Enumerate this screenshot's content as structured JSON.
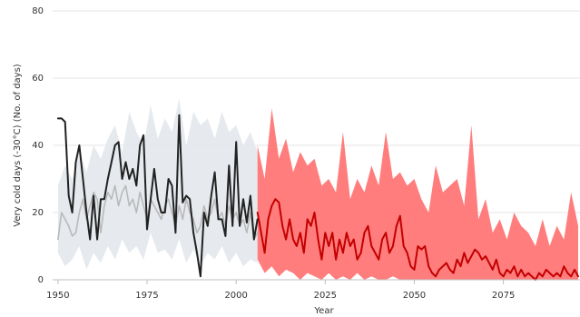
{
  "chart_data": {
    "type": "line",
    "title": "",
    "xlabel": "Year",
    "ylabel": "Very cold days (-30°C) (No. of days)",
    "xlim": [
      1948.5,
      2096.5
    ],
    "ylim": [
      0,
      80
    ],
    "xticks": [
      1950,
      1975,
      2000,
      2025,
      2050,
      2075
    ],
    "yticks": [
      0,
      20,
      40,
      60,
      80
    ],
    "grid": true,
    "legend": "none",
    "colors": {
      "observed": "#222222",
      "model_historical": "#b9b9b9",
      "model_range_historical": "#e3e8ec",
      "projection": "#c40000",
      "projection_range": "#ff6f6f"
    },
    "series": [
      {
        "role": "observed",
        "x": [
          1950,
          1951,
          1952,
          1953,
          1954,
          1955,
          1956,
          1957,
          1958,
          1959,
          1960,
          1961,
          1962,
          1963,
          1964,
          1965,
          1966,
          1967,
          1968,
          1969,
          1970,
          1971,
          1972,
          1973,
          1974,
          1975,
          1976,
          1977,
          1978,
          1979,
          1980,
          1981,
          1982,
          1983,
          1984,
          1985,
          1986,
          1987,
          1988,
          1989,
          1990,
          1991,
          1992,
          1993,
          1994,
          1995,
          1996,
          1997,
          1998,
          1999,
          2000,
          2001,
          2002,
          2003,
          2004,
          2005,
          2006
        ],
        "values": [
          48,
          48,
          47,
          25,
          20,
          35,
          40,
          30,
          20,
          12,
          25,
          12,
          24,
          24,
          30,
          35,
          40,
          41,
          30,
          35,
          30,
          33,
          28,
          40,
          43,
          15,
          24,
          33,
          24,
          20,
          20,
          30,
          28,
          14,
          49,
          23,
          25,
          24,
          14,
          8,
          1,
          20,
          16,
          25,
          32,
          18,
          18,
          13,
          34,
          16,
          41,
          16,
          24,
          17,
          25,
          12,
          18
        ]
      },
      {
        "role": "model_historical",
        "x": [
          1950,
          1951,
          1952,
          1953,
          1954,
          1955,
          1956,
          1957,
          1958,
          1959,
          1960,
          1961,
          1962,
          1963,
          1964,
          1965,
          1966,
          1967,
          1968,
          1969,
          1970,
          1971,
          1972,
          1973,
          1974,
          1975,
          1976,
          1977,
          1978,
          1979,
          1980,
          1981,
          1982,
          1983,
          1984,
          1985,
          1986,
          1987,
          1988,
          1989,
          1990,
          1991,
          1992,
          1993,
          1994,
          1995,
          1996,
          1997,
          1998,
          1999,
          2000,
          2001,
          2002,
          2003,
          2004,
          2005,
          2006
        ],
        "values": [
          12,
          20,
          18,
          16,
          13,
          14,
          20,
          24,
          18,
          22,
          26,
          24,
          14,
          22,
          26,
          24,
          28,
          22,
          26,
          28,
          22,
          24,
          20,
          26,
          22,
          18,
          24,
          22,
          20,
          18,
          22,
          24,
          20,
          16,
          22,
          18,
          24,
          20,
          18,
          14,
          16,
          22,
          18,
          20,
          24,
          18,
          20,
          16,
          22,
          18,
          20,
          16,
          18,
          14,
          20,
          12,
          14
        ]
      },
      {
        "role": "model_range_historical",
        "x": [
          1950,
          1952,
          1954,
          1956,
          1958,
          1960,
          1962,
          1964,
          1966,
          1968,
          1970,
          1972,
          1974,
          1976,
          1978,
          1980,
          1982,
          1984,
          1986,
          1988,
          1990,
          1992,
          1994,
          1996,
          1998,
          2000,
          2002,
          2004,
          2006
        ],
        "upper": [
          28,
          34,
          30,
          38,
          32,
          40,
          36,
          42,
          46,
          38,
          50,
          44,
          40,
          52,
          42,
          48,
          44,
          54,
          40,
          50,
          46,
          48,
          42,
          50,
          44,
          46,
          40,
          44,
          38
        ],
        "lower": [
          8,
          4,
          6,
          10,
          3,
          8,
          5,
          10,
          6,
          12,
          8,
          10,
          6,
          14,
          8,
          9,
          6,
          12,
          5,
          9,
          4,
          8,
          6,
          10,
          5,
          8,
          4,
          6,
          5
        ]
      },
      {
        "role": "projection",
        "x": [
          2006,
          2007,
          2008,
          2009,
          2010,
          2011,
          2012,
          2013,
          2014,
          2015,
          2016,
          2017,
          2018,
          2019,
          2020,
          2021,
          2022,
          2023,
          2024,
          2025,
          2026,
          2027,
          2028,
          2029,
          2030,
          2031,
          2032,
          2033,
          2034,
          2035,
          2036,
          2037,
          2038,
          2039,
          2040,
          2041,
          2042,
          2043,
          2044,
          2045,
          2046,
          2047,
          2048,
          2049,
          2050,
          2051,
          2052,
          2053,
          2054,
          2055,
          2056,
          2057,
          2058,
          2059,
          2060,
          2061,
          2062,
          2063,
          2064,
          2065,
          2066,
          2067,
          2068,
          2069,
          2070,
          2071,
          2072,
          2073,
          2074,
          2075,
          2076,
          2077,
          2078,
          2079,
          2080,
          2081,
          2082,
          2083,
          2084,
          2085,
          2086,
          2087,
          2088,
          2089,
          2090,
          2091,
          2092,
          2093,
          2094,
          2095,
          2096
        ],
        "values": [
          20,
          14,
          8,
          18,
          22,
          24,
          23,
          16,
          12,
          18,
          12,
          10,
          14,
          8,
          18,
          16,
          20,
          12,
          6,
          14,
          10,
          14,
          6,
          12,
          8,
          14,
          10,
          12,
          6,
          8,
          14,
          16,
          10,
          8,
          6,
          12,
          14,
          8,
          10,
          16,
          19,
          10,
          8,
          4,
          3,
          10,
          9,
          10,
          4,
          2,
          1,
          3,
          4,
          5,
          3,
          2,
          6,
          4,
          8,
          5,
          7,
          9,
          8,
          6,
          7,
          5,
          3,
          6,
          2,
          1,
          3,
          2,
          4,
          1,
          3,
          1,
          2,
          1,
          0,
          2,
          1,
          3,
          2,
          1,
          2,
          1,
          4,
          2,
          1,
          3,
          1
        ]
      },
      {
        "role": "projection_range",
        "x": [
          2006,
          2008,
          2010,
          2012,
          2014,
          2016,
          2018,
          2020,
          2022,
          2024,
          2026,
          2028,
          2030,
          2032,
          2034,
          2036,
          2038,
          2040,
          2042,
          2044,
          2046,
          2048,
          2050,
          2052,
          2054,
          2056,
          2058,
          2060,
          2062,
          2064,
          2066,
          2068,
          2070,
          2072,
          2074,
          2076,
          2078,
          2080,
          2082,
          2084,
          2086,
          2088,
          2090,
          2092,
          2094,
          2096
        ],
        "upper": [
          40,
          30,
          51,
          36,
          42,
          32,
          38,
          34,
          36,
          28,
          30,
          26,
          44,
          24,
          30,
          26,
          34,
          28,
          44,
          30,
          32,
          28,
          30,
          24,
          20,
          34,
          26,
          28,
          30,
          22,
          46,
          18,
          24,
          14,
          18,
          12,
          20,
          16,
          14,
          10,
          18,
          10,
          16,
          12,
          26,
          16
        ],
        "lower": [
          6,
          2,
          4,
          1,
          3,
          2,
          0,
          2,
          1,
          0,
          2,
          0,
          1,
          0,
          2,
          0,
          1,
          0,
          0,
          1,
          0,
          0,
          0,
          0,
          0,
          0,
          0,
          0,
          0,
          0,
          0,
          0,
          0,
          0,
          0,
          0,
          0,
          0,
          0,
          0,
          0,
          0,
          0,
          0,
          0,
          0
        ]
      }
    ]
  }
}
